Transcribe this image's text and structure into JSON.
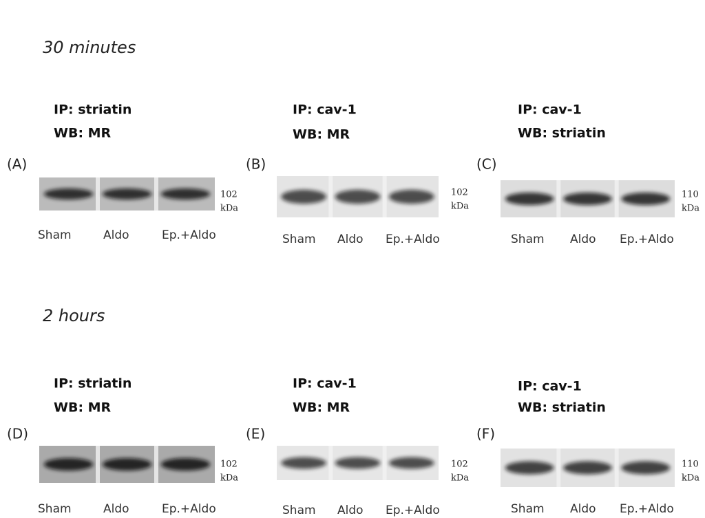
{
  "sections": [
    {
      "title": "30 minutes",
      "panels": [
        {
          "label": "(A)",
          "ip": "IP: striatin",
          "wb": "WB: MR",
          "marker": "102",
          "unit": "kDa",
          "lanes": [
            "Sham",
            "Aldo",
            "Ep.+Aldo"
          ]
        },
        {
          "label": "(B)",
          "ip": "IP: cav-1",
          "wb": "WB: MR",
          "marker": "102",
          "unit": "kDa",
          "lanes": [
            "Sham",
            "Aldo",
            "Ep.+Aldo"
          ]
        },
        {
          "label": "(C)",
          "ip": "IP: cav-1",
          "wb": "WB: striatin",
          "marker": "110",
          "unit": "kDa",
          "lanes": [
            "Sham",
            "Aldo",
            "Ep.+Aldo"
          ]
        }
      ]
    },
    {
      "title": "2 hours",
      "panels": [
        {
          "label": "(D)",
          "ip": "IP: striatin",
          "wb": "WB: MR",
          "marker": "102",
          "unit": "kDa",
          "lanes": [
            "Sham",
            "Aldo",
            "Ep.+Aldo"
          ]
        },
        {
          "label": "(E)",
          "ip": "IP: cav-1",
          "wb": "WB: MR",
          "marker": "102",
          "unit": "kDa",
          "lanes": [
            "Sham",
            "Aldo",
            "Ep.+Aldo"
          ]
        },
        {
          "label": "(F)",
          "ip": "IP: cav-1",
          "wb": "WB: striatin",
          "marker": "110",
          "unit": "kDa",
          "lanes": [
            "Sham",
            "Aldo",
            "Ep.+Aldo"
          ]
        }
      ]
    }
  ]
}
